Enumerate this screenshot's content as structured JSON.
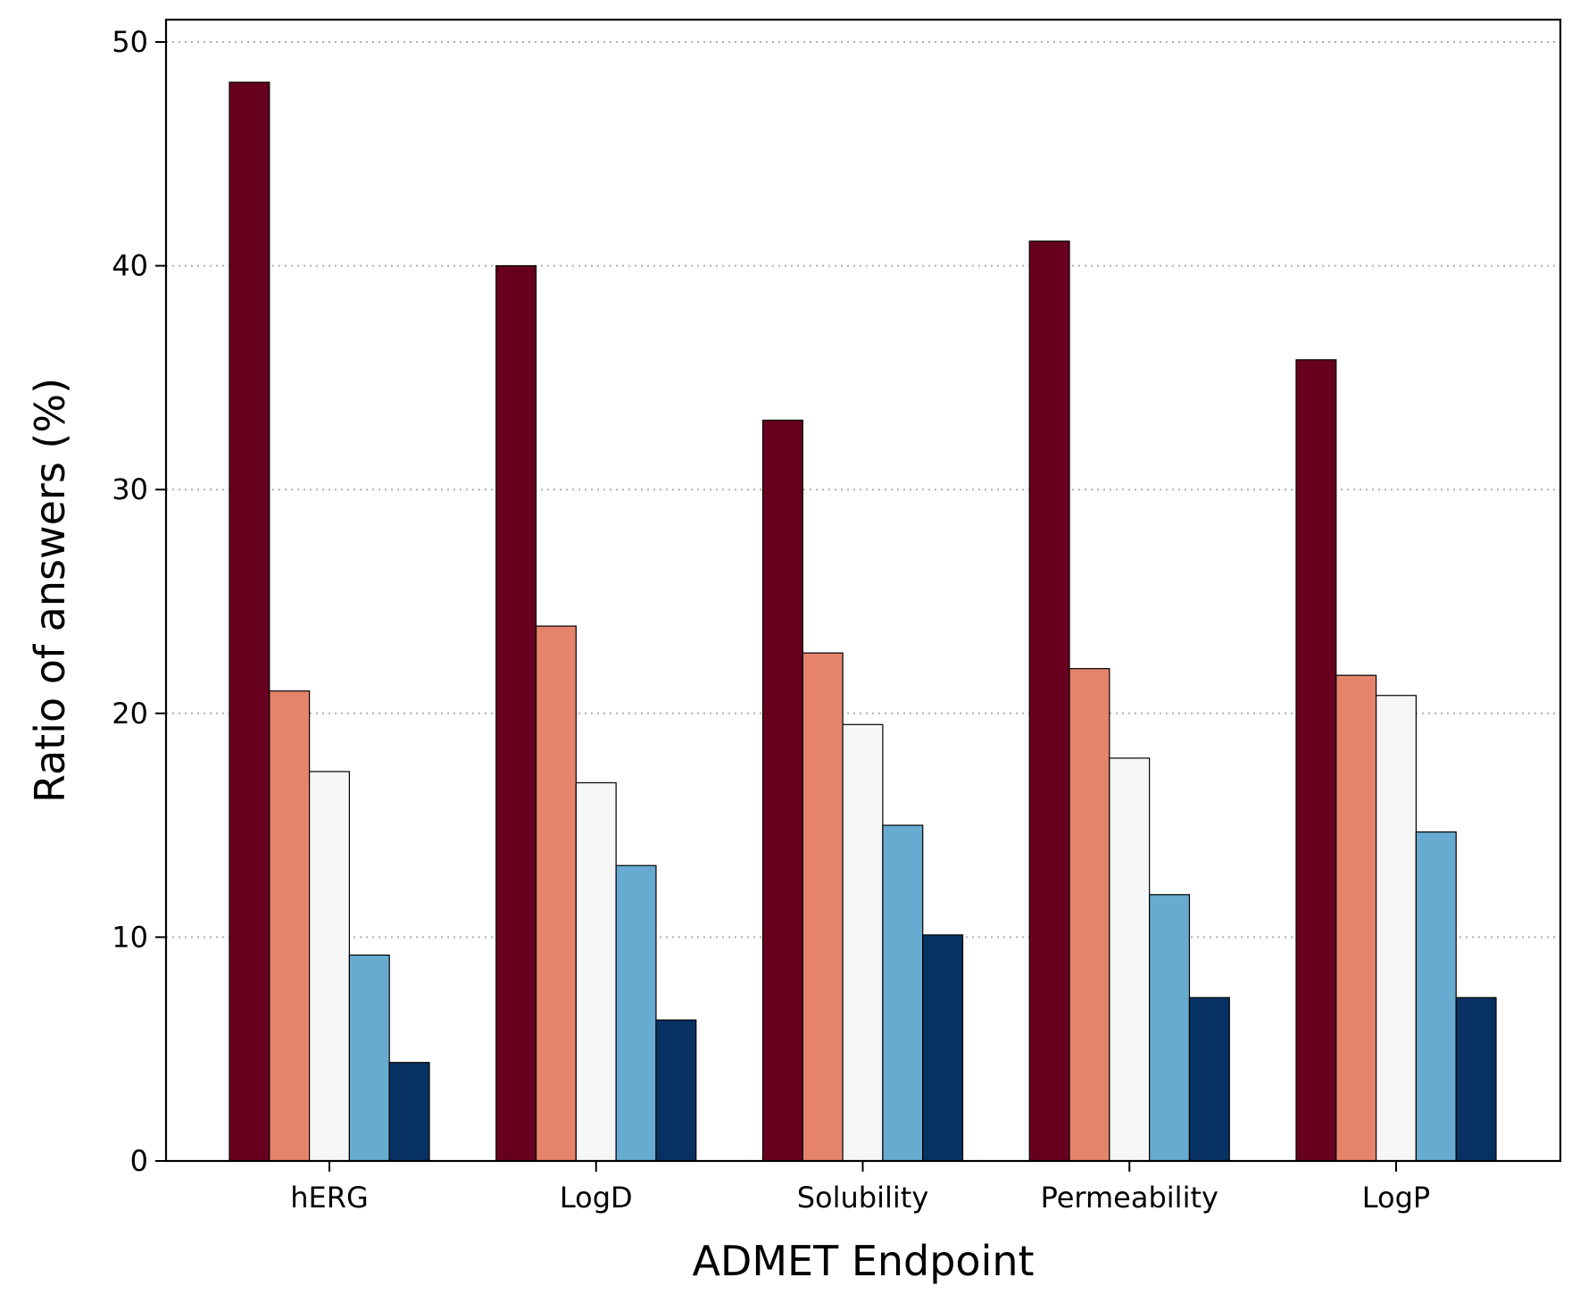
{
  "chart_data": {
    "type": "bar",
    "title": "",
    "xlabel": "ADMET Endpoint",
    "ylabel": "Ratio of answers (%)",
    "categories": [
      "hERG",
      "LogD",
      "Solubility",
      "Permeability",
      "LogP"
    ],
    "ylim": [
      0,
      50
    ],
    "yticks": [
      0,
      10,
      20,
      30,
      40,
      50
    ],
    "grid": "y-dotted",
    "legend": "none",
    "series": [
      {
        "color": "#67001f",
        "values": [
          48.2,
          40.0,
          33.1,
          41.1,
          35.8
        ]
      },
      {
        "color": "#e6846b",
        "values": [
          21.0,
          23.9,
          22.7,
          22.0,
          21.7
        ]
      },
      {
        "color": "#f5f6f5",
        "values": [
          17.4,
          16.9,
          19.5,
          18.0,
          20.8
        ]
      },
      {
        "color": "#68abd1",
        "values": [
          9.2,
          13.2,
          15.0,
          11.9,
          14.7
        ]
      },
      {
        "color": "#063162",
        "values": [
          4.4,
          6.3,
          10.1,
          7.3,
          7.3
        ]
      }
    ]
  }
}
